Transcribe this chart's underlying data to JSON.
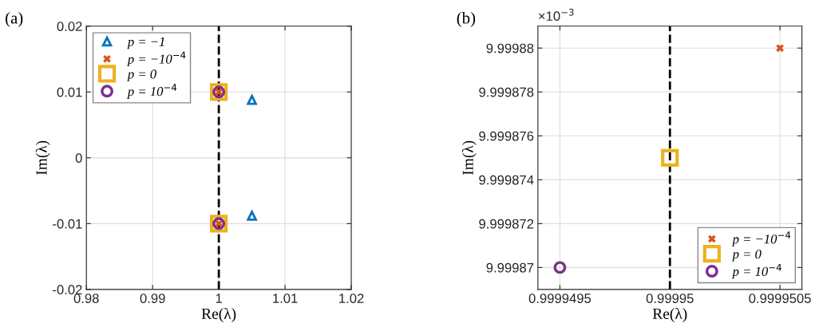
{
  "chart_data": [
    {
      "type": "scatter",
      "title": "(a)",
      "xlabel": "Re(λ)",
      "ylabel": "Im(λ)",
      "xlim": [
        0.98,
        1.02
      ],
      "xticks": [
        0.98,
        0.99,
        1,
        1.01,
        1.02
      ],
      "ylim": [
        -0.02,
        0.02
      ],
      "yticks": [
        -0.02,
        -0.01,
        0,
        0.01,
        0.02
      ],
      "grid": true,
      "legend": "top left",
      "ref_lines": [
        {
          "axis": "x",
          "value": 1,
          "color": "#000000",
          "line_style": "dashed"
        }
      ],
      "series": [
        {
          "name": "p = −1",
          "color": "#0072bd",
          "marker": "triangle",
          "x": [
            1.005,
            1.005
          ],
          "values": [
            0.0088,
            -0.0088
          ]
        },
        {
          "name": "p = −10$^{−4}$",
          "color": "#d95319",
          "marker": "cross",
          "x": [
            1,
            1
          ],
          "values": [
            0.01,
            -0.01
          ]
        },
        {
          "name": "p = 0",
          "color": "#edb120",
          "marker": "square",
          "x": [
            1,
            1
          ],
          "values": [
            0.01,
            -0.01
          ]
        },
        {
          "name": "p = 10$^{−4}$",
          "color": "#7e2f8e",
          "marker": "circle",
          "x": [
            1,
            1
          ],
          "values": [
            0.01,
            -0.01
          ]
        }
      ]
    },
    {
      "type": "scatter",
      "title": "(b)",
      "xlabel": "Re(λ)",
      "ylabel": "Im(λ)",
      "annotations": [
        "×10$^{−3}$"
      ],
      "xlim": [
        0.9999494,
        0.9999506
      ],
      "xticks": [
        0.9999495,
        0.99995,
        0.9999505
      ],
      "ylim": [
        9.999869,
        9.999881
      ],
      "yticks": [
        9.99987,
        9.999872,
        9.999874,
        9.999876,
        9.999878,
        9.99988
      ],
      "grid": true,
      "legend": "bottom right",
      "ref_lines": [
        {
          "axis": "x",
          "value": 0.99995,
          "color": "#000000",
          "line_style": "dashed"
        }
      ],
      "series": [
        {
          "name": "p = −10$^{−4}$",
          "color": "#d95319",
          "marker": "cross",
          "x": [
            0.9999505
          ],
          "values": [
            9.99988
          ]
        },
        {
          "name": "p = 0",
          "color": "#edb120",
          "marker": "square",
          "x": [
            0.99995
          ],
          "values": [
            9.999875
          ]
        },
        {
          "name": "p = 10$^{−4}$",
          "color": "#7e2f8e",
          "marker": "circle",
          "x": [
            0.9999495
          ],
          "values": [
            9.99987
          ]
        }
      ]
    }
  ]
}
